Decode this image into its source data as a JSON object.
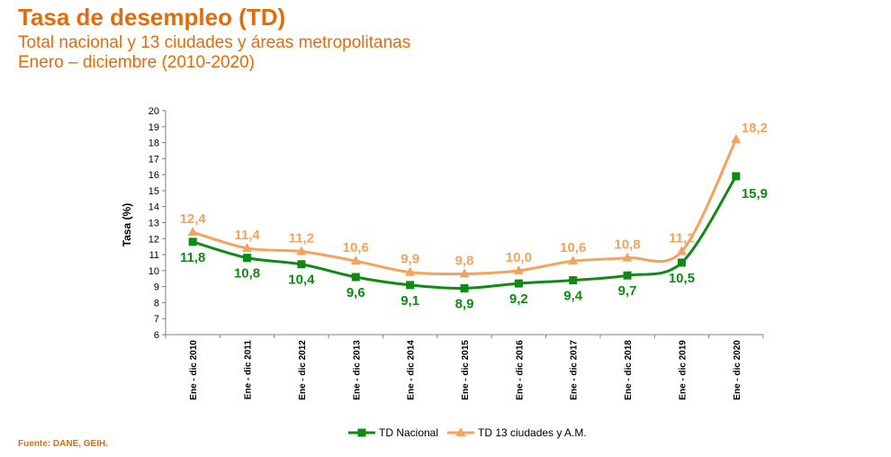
{
  "header": {
    "title": "Tasa de desempleo (TD)",
    "subtitle_line1": "Total nacional y 13 ciudades y áreas metropolitanas",
    "subtitle_line2": "Enero – diciembre  (2010-2020)"
  },
  "footer": {
    "source": "Fuente: DANE, GEIH."
  },
  "chart_data": {
    "type": "line",
    "title": "Tasa de desempleo (TD)",
    "ylabel": "Tasa (%)",
    "xlabel": "",
    "ylim": [
      6,
      20
    ],
    "yticks": [
      6,
      7,
      8,
      9,
      10,
      11,
      12,
      13,
      14,
      15,
      16,
      17,
      18,
      19,
      20
    ],
    "categories": [
      "Ene - dic 2010",
      "Ene - dic 2011",
      "Ene - dic 2012",
      "Ene - dic 2013",
      "Ene - dic 2014",
      "Ene - dic 2015",
      "Ene - dic 2016",
      "Ene - dic 2017",
      "Ene - dic 2018",
      "Ene - dic 2019",
      "Ene - dic 2020"
    ],
    "series": [
      {
        "name": "TD Nacional",
        "color": "#0f8a12",
        "marker": "square",
        "values": [
          11.8,
          10.8,
          10.4,
          9.6,
          9.1,
          8.9,
          9.2,
          9.4,
          9.7,
          10.5,
          15.9
        ],
        "labels": [
          "11,8",
          "10,8",
          "10,4",
          "9,6",
          "9,1",
          "8,9",
          "9,2",
          "9,4",
          "9,7",
          "10,5",
          "15,9"
        ]
      },
      {
        "name": "TD 13 ciudades y A.M.",
        "color": "#f5a25d",
        "marker": "triangle",
        "values": [
          12.4,
          11.4,
          11.2,
          10.6,
          9.9,
          9.8,
          10.0,
          10.6,
          10.8,
          11.2,
          18.2
        ],
        "labels": [
          "12,4",
          "11,4",
          "11,2",
          "10,6",
          "9,9",
          "9,8",
          "10,0",
          "10,6",
          "10,8",
          "11,2",
          "18,2"
        ]
      }
    ],
    "grid": false,
    "legend_position": "bottom"
  }
}
